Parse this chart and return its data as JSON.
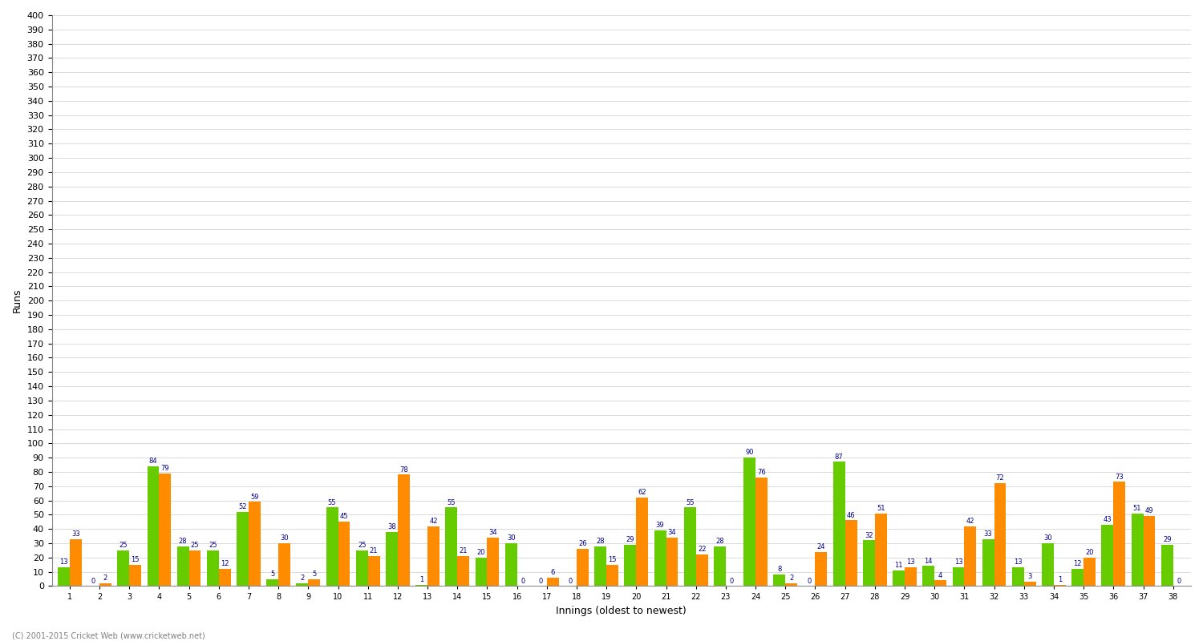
{
  "xlabel": "Innings (oldest to newest)",
  "ylabel": "Runs",
  "ylim": [
    0,
    400
  ],
  "innings_data": [
    [
      13,
      33
    ],
    [
      0,
      2
    ],
    [
      25,
      15
    ],
    [
      84,
      79
    ],
    [
      28,
      25
    ],
    [
      25,
      12
    ],
    [
      52,
      59
    ],
    [
      5,
      30
    ],
    [
      2,
      5
    ],
    [
      55,
      45
    ],
    [
      25,
      21
    ],
    [
      38,
      78
    ],
    [
      1,
      42
    ],
    [
      55,
      21
    ],
    [
      20,
      34
    ],
    [
      30,
      0
    ],
    [
      0,
      6
    ],
    [
      0,
      26
    ],
    [
      28,
      15
    ],
    [
      29,
      62
    ],
    [
      39,
      34
    ],
    [
      55,
      22
    ],
    [
      28,
      0
    ],
    [
      90,
      76
    ],
    [
      8,
      2
    ],
    [
      0,
      24
    ],
    [
      87,
      46
    ],
    [
      32,
      51
    ],
    [
      11,
      13
    ],
    [
      14,
      4
    ],
    [
      13,
      42
    ],
    [
      33,
      72
    ],
    [
      13,
      3
    ],
    [
      30,
      1
    ],
    [
      12,
      20
    ],
    [
      43,
      73
    ],
    [
      51,
      49
    ],
    [
      29,
      0
    ]
  ],
  "x_labels": [
    "1",
    "2",
    "3",
    "4",
    "5",
    "6",
    "7",
    "8",
    "9",
    "10",
    "11",
    "12",
    "13",
    "14",
    "15",
    "16",
    "17",
    "18",
    "19",
    "20",
    "21",
    "22",
    "23",
    "24",
    "25",
    "26",
    "27",
    "28",
    "29",
    "30",
    "31",
    "32",
    "33",
    "34",
    "35",
    "36",
    "37",
    "38"
  ],
  "bar_color_orange": "#FF8C00",
  "bar_color_green": "#66CC00",
  "text_color": "#00008B",
  "background_color": "#FFFFFF",
  "grid_color": "#CCCCCC",
  "footer": "(C) 2001-2015 Cricket Web (www.cricketweb.net)"
}
